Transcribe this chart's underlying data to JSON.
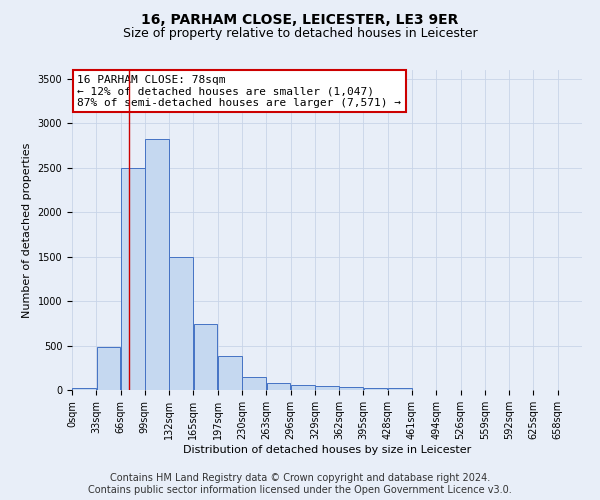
{
  "title": "16, PARHAM CLOSE, LEICESTER, LE3 9ER",
  "subtitle": "Size of property relative to detached houses in Leicester",
  "xlabel": "Distribution of detached houses by size in Leicester",
  "ylabel": "Number of detached properties",
  "bin_labels": [
    "0sqm",
    "33sqm",
    "66sqm",
    "99sqm",
    "132sqm",
    "165sqm",
    "197sqm",
    "230sqm",
    "263sqm",
    "296sqm",
    "329sqm",
    "362sqm",
    "395sqm",
    "428sqm",
    "461sqm",
    "494sqm",
    "526sqm",
    "559sqm",
    "592sqm",
    "625sqm",
    "658sqm"
  ],
  "bar_heights": [
    20,
    480,
    2500,
    2820,
    1500,
    740,
    380,
    150,
    80,
    60,
    40,
    30,
    20,
    20,
    0,
    0,
    0,
    0,
    0,
    0,
    0
  ],
  "bar_color": "#c5d8f0",
  "bar_edge_color": "#4472c4",
  "property_line_x": 78,
  "bin_width": 33,
  "ylim": [
    0,
    3600
  ],
  "yticks": [
    0,
    500,
    1000,
    1500,
    2000,
    2500,
    3000,
    3500
  ],
  "annotation_box_text": "16 PARHAM CLOSE: 78sqm\n← 12% of detached houses are smaller (1,047)\n87% of semi-detached houses are larger (7,571) →",
  "annotation_box_color": "#ffffff",
  "annotation_box_edge_color": "#cc0000",
  "red_line_color": "#cc0000",
  "grid_color": "#c8d4e8",
  "background_color": "#e8eef8",
  "footer_line1": "Contains HM Land Registry data © Crown copyright and database right 2024.",
  "footer_line2": "Contains public sector information licensed under the Open Government Licence v3.0.",
  "title_fontsize": 10,
  "subtitle_fontsize": 9,
  "annotation_fontsize": 8,
  "ylabel_fontsize": 8,
  "xlabel_fontsize": 8,
  "footer_fontsize": 7,
  "tick_fontsize": 7
}
